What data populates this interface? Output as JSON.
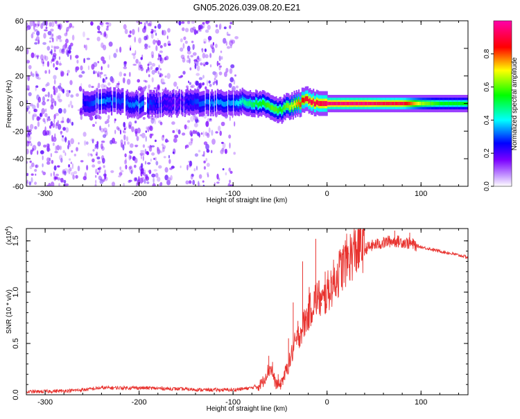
{
  "title": "GN05.2026.039.08.20.E21",
  "chart_data": [
    {
      "type": "heatmap",
      "xlabel": "Height of straight line (km)",
      "ylabel": "Frequency (Hz)",
      "xlim": [
        -320,
        150
      ],
      "ylim": [
        -60,
        60
      ],
      "x_ticks": [
        "-300",
        "-200",
        "-100",
        "0",
        "100"
      ],
      "y_ticks": [
        "-60",
        "-40",
        "-20",
        "0",
        "20",
        "40",
        "60"
      ],
      "colorbar": {
        "label": "Normalized spectral amplitude",
        "range": [
          0,
          1
        ],
        "ticks": [
          "0.0",
          "0.2",
          "0.4",
          "0.6",
          "0.8"
        ],
        "colors": [
          "#ffffff",
          "#7b00ff",
          "#0000ff",
          "#00ffff",
          "#00ff00",
          "#ffff00",
          "#ff0000",
          "#ff00aa"
        ]
      },
      "ridge": {
        "x": [
          -260,
          -240,
          -220,
          -200,
          -180,
          -160,
          -140,
          -120,
          -100,
          -90,
          -80,
          -70,
          -60,
          -55,
          -50,
          -45,
          -40,
          -35,
          -30,
          -25,
          -20,
          -15,
          -10,
          -5,
          0,
          20,
          40,
          60,
          80,
          100,
          120,
          150
        ],
        "frequency": [
          0,
          2,
          1,
          -1,
          0,
          0,
          1,
          0,
          1,
          1,
          0,
          0,
          -2,
          -4,
          -5,
          -3,
          -2,
          -1,
          0,
          2,
          3,
          1,
          0,
          0,
          0,
          0,
          0,
          0,
          0,
          0,
          0,
          0
        ],
        "amplitude": [
          0.25,
          0.35,
          0.3,
          0.35,
          0.25,
          0.2,
          0.3,
          0.35,
          0.35,
          0.45,
          0.5,
          0.55,
          0.6,
          0.6,
          0.55,
          0.6,
          0.65,
          0.7,
          0.8,
          0.85,
          0.9,
          0.9,
          0.9,
          0.9,
          0.95,
          0.95,
          0.95,
          0.9,
          0.9,
          0.65,
          0.55,
          0.55
        ]
      }
    },
    {
      "type": "line",
      "xlabel": "Height of straight line (km)",
      "ylabel": "SNR (10 * v/v)",
      "scale_note": "(x10",
      "scale_exp": "4",
      "scale_close": ")",
      "xlim": [
        -320,
        150
      ],
      "ylim": [
        0,
        1.62
      ],
      "x_ticks": [
        "-300",
        "-200",
        "-100",
        "0",
        "100"
      ],
      "y_ticks": [
        "0.0",
        "0.5",
        "1.0",
        "1.5"
      ],
      "color": "#e8322e",
      "x": [
        -320,
        -280,
        -260,
        -240,
        -200,
        -160,
        -130,
        -110,
        -100,
        -90,
        -80,
        -72,
        -68,
        -64,
        -60,
        -55,
        -50,
        -45,
        -40,
        -35,
        -30,
        -25,
        -20,
        -15,
        -10,
        -5,
        0,
        10,
        20,
        30,
        40,
        50,
        60,
        70,
        80,
        90,
        100,
        120,
        150
      ],
      "y": [
        0.01,
        0.02,
        0.03,
        0.05,
        0.05,
        0.04,
        0.03,
        0.03,
        0.03,
        0.04,
        0.05,
        0.08,
        0.12,
        0.2,
        0.25,
        0.1,
        0.08,
        0.18,
        0.3,
        0.45,
        0.55,
        0.65,
        0.75,
        0.85,
        0.92,
        0.85,
        0.95,
        1.1,
        1.25,
        1.35,
        1.42,
        1.46,
        1.48,
        1.5,
        1.49,
        1.47,
        1.44,
        1.4,
        1.34
      ],
      "spikes": {
        "x": [
          -62,
          -58,
          -52,
          -41,
          -36,
          -31,
          -26,
          -19,
          -12,
          -6,
          -2,
          65,
          72,
          88
        ],
        "y": [
          0.38,
          0.32,
          0.2,
          0.55,
          0.9,
          0.72,
          1.3,
          1.05,
          1.52,
          0.9,
          1.2,
          1.55,
          1.6,
          1.58
        ]
      }
    }
  ]
}
